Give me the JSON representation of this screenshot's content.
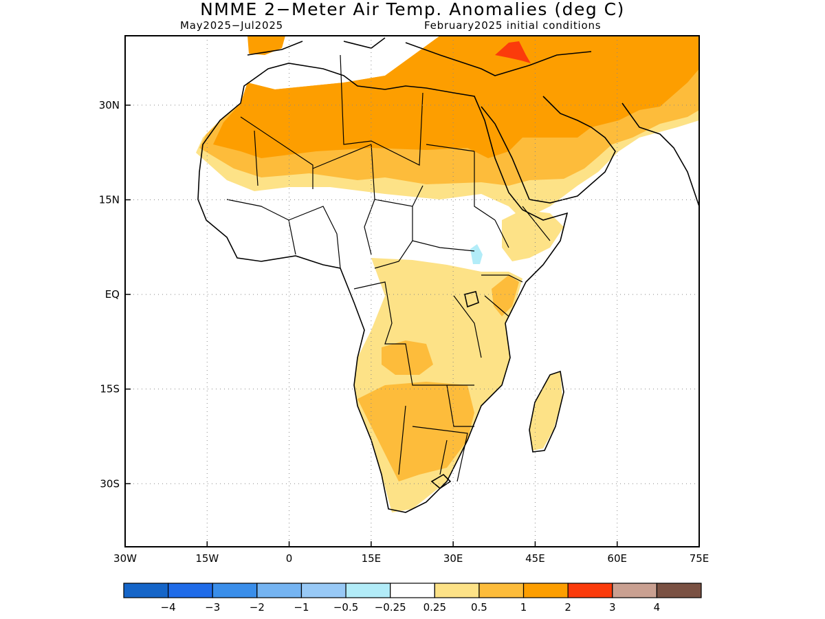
{
  "title": "NMME 2−Meter Air Temp. Anomalies (deg C)",
  "subtitle_left": "May2025−Jul2025",
  "subtitle_right": "February2025 initial conditions",
  "map": {
    "lon_range": [
      -30,
      75
    ],
    "lat_range": [
      -40,
      41
    ],
    "lat_ticks": [
      {
        "value": 30,
        "label": "30N"
      },
      {
        "value": 15,
        "label": "15N"
      },
      {
        "value": 0,
        "label": "EQ"
      },
      {
        "value": -15,
        "label": "15S"
      },
      {
        "value": -30,
        "label": "30S"
      }
    ],
    "lon_ticks": [
      {
        "value": -30,
        "label": "30W"
      },
      {
        "value": -15,
        "label": "15W"
      },
      {
        "value": 0,
        "label": "0"
      },
      {
        "value": 15,
        "label": "15E"
      },
      {
        "value": 30,
        "label": "30E"
      },
      {
        "value": 45,
        "label": "45E"
      },
      {
        "value": 60,
        "label": "60E"
      },
      {
        "value": 75,
        "label": "75E"
      }
    ],
    "gridlines": "dotted"
  },
  "colorbar": {
    "colors": [
      "#1565c8",
      "#1f6be8",
      "#3a8eea",
      "#75b4f2",
      "#98c9f6",
      "#b2ecf8",
      "#ffffff",
      "#fde287",
      "#fdbc3b",
      "#fd9e00",
      "#fb3b0b",
      "#c9a091",
      "#7a5143"
    ],
    "labels": [
      "−4",
      "−3",
      "−2",
      "−1",
      "−0.5",
      "−0.25",
      "0.25",
      "0.5",
      "1",
      "2",
      "3",
      "4"
    ]
  },
  "colors": {
    "anom_0_25_0_5": "#fde287",
    "anom_0_5_1": "#fdbc3b",
    "anom_1_2": "#fd9e00",
    "anom_2_3": "#fb3b0b",
    "anom_neg_0_25_neg_0_5": "#b2ecf8"
  }
}
